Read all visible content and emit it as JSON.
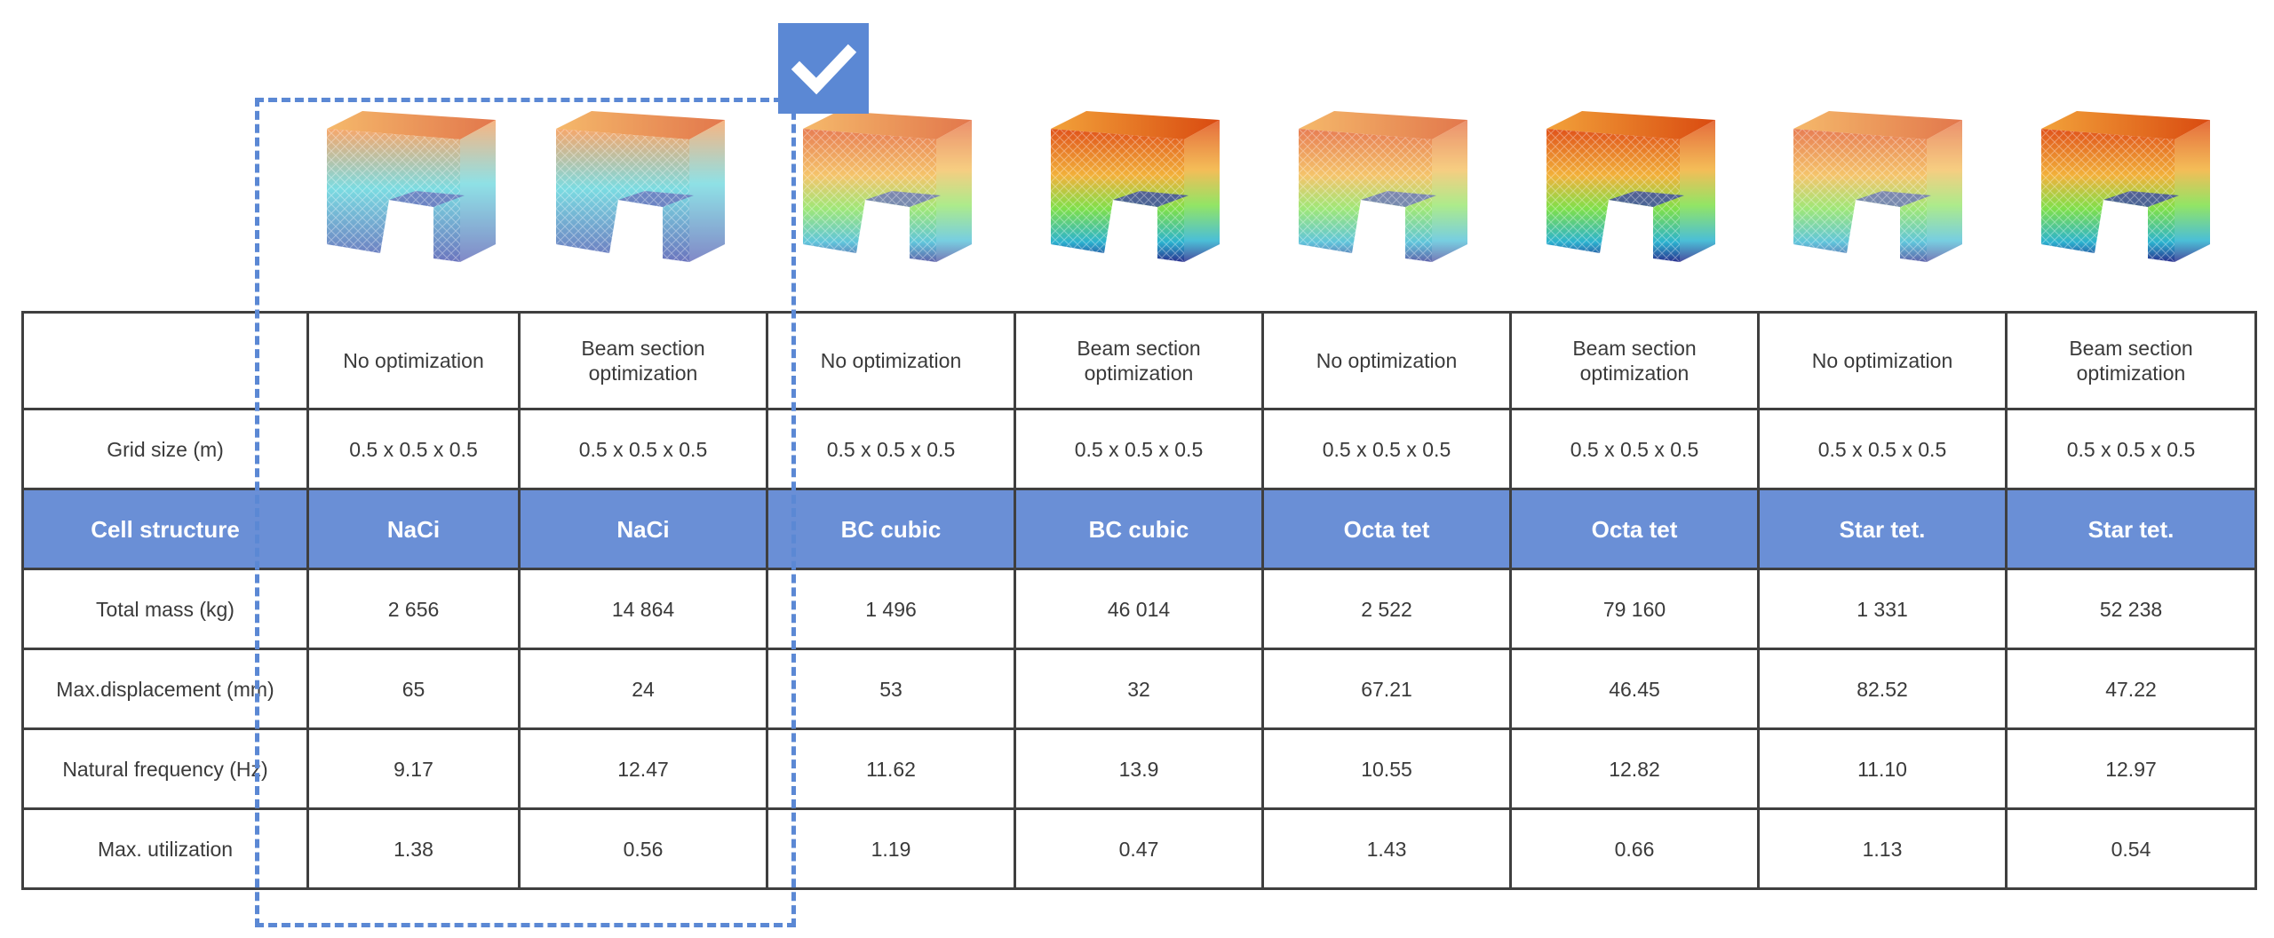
{
  "columns": [
    {
      "optimization": "No optimization",
      "grid_size": "0.5 x 0.5 x 0.5",
      "cell_structure": "NaCi",
      "total_mass": "2 656",
      "max_displacement": "65",
      "natural_frequency": "9.17",
      "max_utilization": "1.38"
    },
    {
      "optimization": "Beam section optimization",
      "grid_size": "0.5 x 0.5 x 0.5",
      "cell_structure": "NaCi",
      "total_mass": "14 864",
      "max_displacement": "24",
      "natural_frequency": "12.47",
      "max_utilization": "0.56"
    },
    {
      "optimization": "No optimization",
      "grid_size": "0.5 x 0.5 x 0.5",
      "cell_structure": "BC cubic",
      "total_mass": "1 496",
      "max_displacement": "53",
      "natural_frequency": "11.62",
      "max_utilization": "1.19"
    },
    {
      "optimization": "Beam section optimization",
      "grid_size": "0.5 x 0.5 x 0.5",
      "cell_structure": "BC cubic",
      "total_mass": "46 014",
      "max_displacement": "32",
      "natural_frequency": "13.9",
      "max_utilization": "0.47"
    },
    {
      "optimization": "No optimization",
      "grid_size": "0.5 x 0.5 x 0.5",
      "cell_structure": "Octa tet",
      "total_mass": "2 522",
      "max_displacement": "67.21",
      "natural_frequency": "10.55",
      "max_utilization": "1.43"
    },
    {
      "optimization": "Beam section optimization",
      "grid_size": "0.5 x 0.5 x 0.5",
      "cell_structure": "Octa tet",
      "total_mass": "79 160",
      "max_displacement": "46.45",
      "natural_frequency": "12.82",
      "max_utilization": "0.66"
    },
    {
      "optimization": "No optimization",
      "grid_size": "0.5 x 0.5 x 0.5",
      "cell_structure": "Star  tet.",
      "total_mass": "1 331",
      "max_displacement": "82.52",
      "natural_frequency": "11.10",
      "max_utilization": "1.13"
    },
    {
      "optimization": "Beam section optimization",
      "grid_size": "0.5 x 0.5 x 0.5",
      "cell_structure": "Star tet.",
      "total_mass": "52 238",
      "max_displacement": "47.22",
      "natural_frequency": "12.97",
      "max_utilization": "0.54"
    }
  ],
  "row_labels": {
    "optimization": "",
    "grid_size": "Grid size (m)",
    "cell_structure": "Cell structure",
    "total_mass": "Total mass (kg)",
    "max_displacement": "Max.displacement (mm)",
    "natural_frequency": "Natural frequency (Hz)",
    "max_utilization": "Max. utilization"
  },
  "colors": {
    "header_band": "#6a8fd6",
    "selection": "#5b88d4",
    "border": "#3f3f3f"
  },
  "selection": {
    "icon": "checkmark-icon",
    "selected_columns": [
      0,
      1
    ]
  }
}
